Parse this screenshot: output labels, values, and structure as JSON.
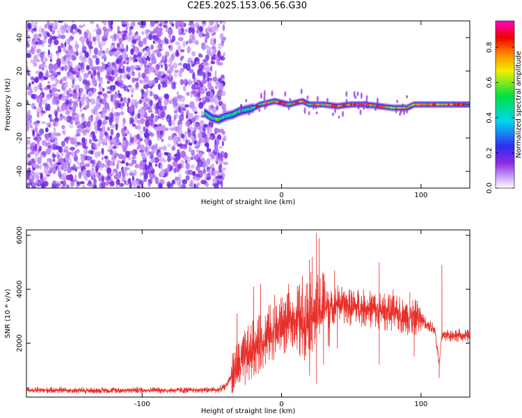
{
  "title": "C2E5.2025.153.06.56.G30",
  "chart_data": [
    {
      "type": "heatmap",
      "xlabel": "Height of straight line (km)",
      "ylabel": "Frequency (Hz)",
      "xlim": [
        -183,
        135
      ],
      "ylim": [
        -50,
        50
      ],
      "xticks": [
        -100,
        0,
        100
      ],
      "yticks": [
        -40,
        -20,
        0,
        20,
        40
      ],
      "colorbar": {
        "label": "Normalized spectral amplitude",
        "range": [
          0,
          0.95
        ],
        "ticks": [
          "0.0",
          "0.2",
          "0.4",
          "0.6",
          "0.8"
        ],
        "tick_values": [
          0,
          0.2,
          0.4,
          0.6,
          0.8
        ]
      },
      "noise_region_x": [
        -183,
        -45
      ],
      "signal_track": {
        "x": [
          -55,
          -50,
          -45,
          -40,
          -35,
          -30,
          -25,
          -20,
          -15,
          -10,
          -5,
          0,
          5,
          10,
          15,
          20,
          30,
          40,
          50,
          60,
          70,
          80,
          90,
          95,
          100,
          110,
          120,
          135
        ],
        "y": [
          -5,
          -8,
          -9,
          -7,
          -6,
          -4,
          -3,
          -2,
          0,
          1,
          2,
          1,
          0,
          1,
          2,
          0,
          0,
          -1,
          0,
          0,
          -1,
          -2,
          -2,
          0,
          0,
          0,
          0,
          0
        ]
      }
    },
    {
      "type": "line",
      "xlabel": "Height of straight line (km)",
      "ylabel": "SNR (10 * v/v)",
      "xlim": [
        -183,
        135
      ],
      "ylim": [
        0,
        6200
      ],
      "xticks": [
        -100,
        0,
        100
      ],
      "yticks": [
        2000,
        4000,
        6000
      ],
      "series": [
        {
          "color": "#e8302a",
          "x": [
            -183,
            -160,
            -140,
            -120,
            -100,
            -80,
            -60,
            -45,
            -40,
            -35,
            -30,
            -25,
            -20,
            -15,
            -10,
            -5,
            0,
            5,
            10,
            15,
            20,
            25,
            30,
            35,
            40,
            45,
            50,
            60,
            70,
            80,
            90,
            100,
            105,
            110,
            113,
            115,
            120,
            125,
            135
          ],
          "y": [
            250,
            260,
            240,
            250,
            260,
            250,
            260,
            270,
            400,
            900,
            1200,
            1500,
            1800,
            2000,
            2300,
            2500,
            2600,
            2800,
            2900,
            2700,
            3200,
            3000,
            3400,
            3300,
            3500,
            3400,
            3300,
            3300,
            3200,
            3100,
            3000,
            2900,
            2700,
            2500,
            1200,
            2300,
            2300,
            2300,
            2250
          ],
          "peaks": [
            [
              -32,
              3100
            ],
            [
              -20,
              4100
            ],
            [
              -15,
              4200
            ],
            [
              -5,
              3800
            ],
            [
              5,
              4200
            ],
            [
              15,
              4500
            ],
            [
              20,
              5100
            ],
            [
              22,
              5200
            ],
            [
              25,
              6100
            ],
            [
              27,
              5900
            ],
            [
              38,
              4700
            ],
            [
              55,
              4000
            ],
            [
              70,
              5000
            ],
            [
              80,
              4000
            ],
            [
              92,
              3900
            ],
            [
              115,
              4900
            ]
          ],
          "dips": [
            [
              20,
              800
            ],
            [
              25,
              500
            ],
            [
              30,
              1200
            ],
            [
              40,
              1800
            ],
            [
              70,
              1200
            ],
            [
              95,
              1500
            ],
            [
              113,
              700
            ]
          ]
        }
      ]
    }
  ]
}
